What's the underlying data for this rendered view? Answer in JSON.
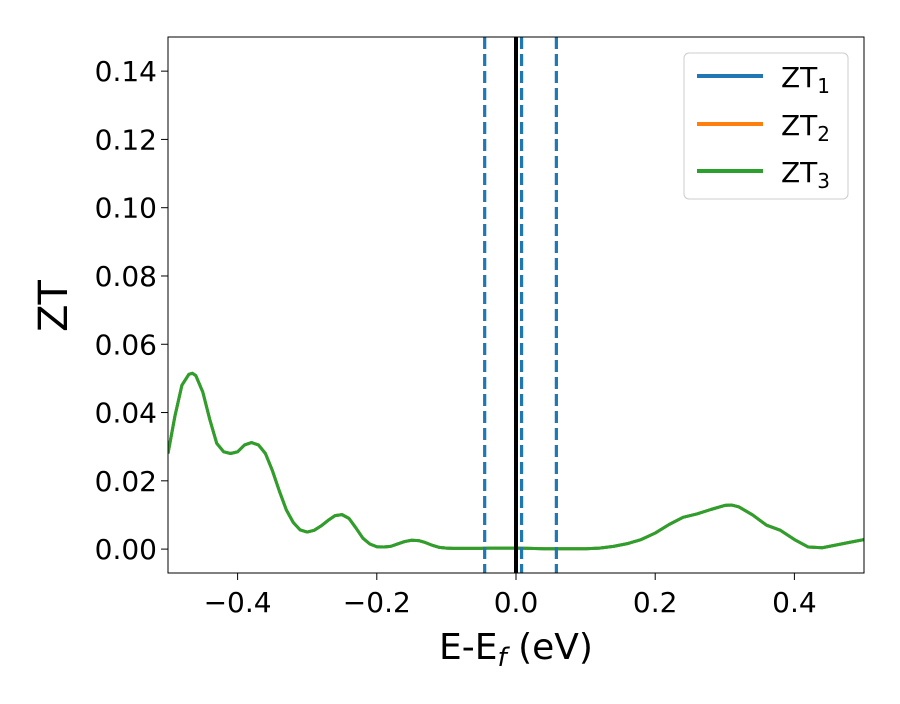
{
  "chart_data": {
    "type": "line",
    "xlabel": {
      "main": "E-E",
      "sub": "f",
      "unit": " (eV)"
    },
    "ylabel": "ZT",
    "xlim": [
      -0.5,
      0.5
    ],
    "ylim": [
      -0.007,
      0.15
    ],
    "x_ticks": [
      -0.4,
      -0.2,
      0.0,
      0.2,
      0.4
    ],
    "x_tick_labels": [
      "−0.4",
      "−0.2",
      "0.0",
      "0.2",
      "0.4"
    ],
    "y_ticks": [
      0.0,
      0.02,
      0.04,
      0.06,
      0.08,
      0.1,
      0.12,
      0.14
    ],
    "y_tick_labels": [
      "0.00",
      "0.02",
      "0.04",
      "0.06",
      "0.08",
      "0.10",
      "0.12",
      "0.14"
    ],
    "grid": false,
    "legend_position": "top-right",
    "vertical_lines": [
      {
        "x": 0.0,
        "style": "solid",
        "color": "#000000"
      },
      {
        "x": -0.045,
        "style": "dashed",
        "color": "#1f77b4"
      },
      {
        "x": 0.008,
        "style": "dashed",
        "color": "#1f77b4"
      },
      {
        "x": 0.058,
        "style": "dashed",
        "color": "#1f77b4"
      }
    ],
    "x": [
      -0.5,
      -0.49,
      -0.48,
      -0.47,
      -0.465,
      -0.46,
      -0.45,
      -0.44,
      -0.43,
      -0.42,
      -0.41,
      -0.4,
      -0.39,
      -0.38,
      -0.37,
      -0.36,
      -0.35,
      -0.34,
      -0.33,
      -0.32,
      -0.31,
      -0.3,
      -0.29,
      -0.28,
      -0.27,
      -0.26,
      -0.25,
      -0.24,
      -0.23,
      -0.22,
      -0.21,
      -0.2,
      -0.19,
      -0.18,
      -0.17,
      -0.16,
      -0.15,
      -0.14,
      -0.13,
      -0.12,
      -0.11,
      -0.1,
      -0.09,
      -0.08,
      -0.07,
      -0.06,
      -0.05,
      -0.04,
      -0.03,
      -0.02,
      -0.01,
      0.0,
      0.02,
      0.04,
      0.06,
      0.08,
      0.1,
      0.12,
      0.14,
      0.16,
      0.18,
      0.2,
      0.22,
      0.24,
      0.26,
      0.28,
      0.3,
      0.31,
      0.32,
      0.34,
      0.36,
      0.38,
      0.4,
      0.42,
      0.44,
      0.46,
      0.48,
      0.5
    ],
    "series": [
      {
        "name": "ZT",
        "sub": "1",
        "color": "#1f77b4",
        "values": [
          0.028,
          0.039,
          0.048,
          0.0512,
          0.0515,
          0.0508,
          0.046,
          0.038,
          0.031,
          0.0285,
          0.028,
          0.0285,
          0.0305,
          0.0312,
          0.0305,
          0.028,
          0.023,
          0.017,
          0.0115,
          0.0078,
          0.0056,
          0.005,
          0.0055,
          0.0068,
          0.0084,
          0.0098,
          0.0101,
          0.009,
          0.0062,
          0.0032,
          0.0015,
          0.0007,
          0.0006,
          0.0008,
          0.0015,
          0.0022,
          0.0026,
          0.0025,
          0.0019,
          0.0011,
          0.0005,
          0.0003,
          0.0002,
          0.0002,
          0.0002,
          0.0002,
          0.0002,
          0.0003,
          0.0003,
          0.0003,
          0.0003,
          0.0003,
          0.0002,
          0.0001,
          0.0001,
          0.0001,
          0.0001,
          0.0003,
          0.0008,
          0.0016,
          0.0028,
          0.0047,
          0.0072,
          0.0093,
          0.0103,
          0.0116,
          0.0128,
          0.0129,
          0.0124,
          0.01,
          0.007,
          0.0055,
          0.0028,
          0.0006,
          0.0004,
          0.0012,
          0.002,
          0.0028
        ]
      },
      {
        "name": "ZT",
        "sub": "2",
        "color": "#ff7f0e",
        "values": [
          0.028,
          0.039,
          0.048,
          0.0512,
          0.0515,
          0.0508,
          0.046,
          0.038,
          0.031,
          0.0285,
          0.028,
          0.0285,
          0.0305,
          0.0312,
          0.0305,
          0.028,
          0.023,
          0.017,
          0.0115,
          0.0078,
          0.0056,
          0.005,
          0.0055,
          0.0068,
          0.0084,
          0.0098,
          0.0101,
          0.009,
          0.0062,
          0.0032,
          0.0015,
          0.0007,
          0.0006,
          0.0008,
          0.0015,
          0.0022,
          0.0026,
          0.0025,
          0.0019,
          0.0011,
          0.0005,
          0.0003,
          0.0002,
          0.0002,
          0.0002,
          0.0002,
          0.0002,
          0.0003,
          0.0003,
          0.0003,
          0.0003,
          0.0003,
          0.0002,
          0.0001,
          0.0001,
          0.0001,
          0.0001,
          0.0003,
          0.0008,
          0.0016,
          0.0028,
          0.0047,
          0.0072,
          0.0093,
          0.0103,
          0.0116,
          0.0128,
          0.0129,
          0.0124,
          0.01,
          0.007,
          0.0055,
          0.0028,
          0.0006,
          0.0004,
          0.0012,
          0.002,
          0.0028
        ]
      },
      {
        "name": "ZT",
        "sub": "3",
        "color": "#2ca02c",
        "values": [
          0.028,
          0.039,
          0.048,
          0.0512,
          0.0515,
          0.0508,
          0.046,
          0.038,
          0.031,
          0.0285,
          0.028,
          0.0285,
          0.0305,
          0.0312,
          0.0305,
          0.028,
          0.023,
          0.017,
          0.0115,
          0.0078,
          0.0056,
          0.005,
          0.0055,
          0.0068,
          0.0084,
          0.0098,
          0.0101,
          0.009,
          0.0062,
          0.0032,
          0.0015,
          0.0007,
          0.0006,
          0.0008,
          0.0015,
          0.0022,
          0.0026,
          0.0025,
          0.0019,
          0.0011,
          0.0005,
          0.0003,
          0.0002,
          0.0002,
          0.0002,
          0.0002,
          0.0002,
          0.0003,
          0.0003,
          0.0003,
          0.0003,
          0.0003,
          0.0002,
          0.0001,
          0.0001,
          0.0001,
          0.0001,
          0.0003,
          0.0008,
          0.0016,
          0.0028,
          0.0047,
          0.0072,
          0.0093,
          0.0103,
          0.0116,
          0.0128,
          0.0129,
          0.0124,
          0.01,
          0.007,
          0.0055,
          0.0028,
          0.0006,
          0.0004,
          0.0012,
          0.002,
          0.0028
        ]
      }
    ]
  }
}
